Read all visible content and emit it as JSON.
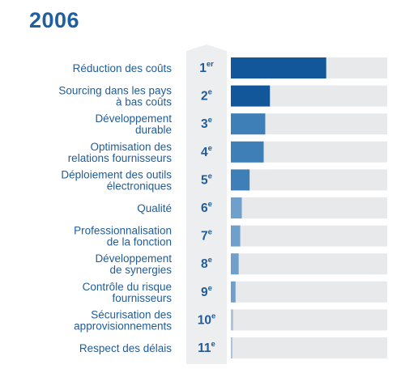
{
  "chart_data": {
    "type": "bar",
    "orientation": "horizontal",
    "title": "2006",
    "xlim": [
      0,
      100
    ],
    "axes_shown": false,
    "grid": false,
    "colors": {
      "title": "#1f5f9e",
      "text": "#1f5c99",
      "track": "#e8e9eb",
      "rank_band": "#eceef0",
      "bar_strong": "#13579b",
      "bar_medium": "#3f7fb8",
      "bar_light": "#6f9fcb",
      "bar_faint": "#a9c3dd"
    },
    "categories": [
      [
        "Réduction des coûts"
      ],
      [
        "Sourcing dans les pays",
        "à bas coûts"
      ],
      [
        "Développement",
        "durable"
      ],
      [
        "Optimisation des",
        "relations fournisseurs"
      ],
      [
        "Déploiement des outils",
        "électroniques"
      ],
      [
        "Qualité"
      ],
      [
        "Professionnalisation",
        "de la fonction"
      ],
      [
        "Développement",
        "de synergies"
      ],
      [
        "Contrôle du risque",
        "fournisseurs"
      ],
      [
        "Sécurisation des",
        "approvisionnements"
      ],
      [
        "Respect des délais"
      ]
    ],
    "ranks": [
      {
        "num": "1",
        "suffix": "er"
      },
      {
        "num": "2",
        "suffix": "e"
      },
      {
        "num": "3",
        "suffix": "e"
      },
      {
        "num": "4",
        "suffix": "e"
      },
      {
        "num": "5",
        "suffix": "e"
      },
      {
        "num": "6",
        "suffix": "e"
      },
      {
        "num": "7",
        "suffix": "e"
      },
      {
        "num": "8",
        "suffix": "e"
      },
      {
        "num": "9",
        "suffix": "e"
      },
      {
        "num": "10",
        "suffix": "e"
      },
      {
        "num": "11",
        "suffix": "e"
      }
    ],
    "values": [
      61,
      25,
      22,
      21,
      12,
      7,
      6,
      5,
      3,
      1.5,
      1
    ]
  }
}
